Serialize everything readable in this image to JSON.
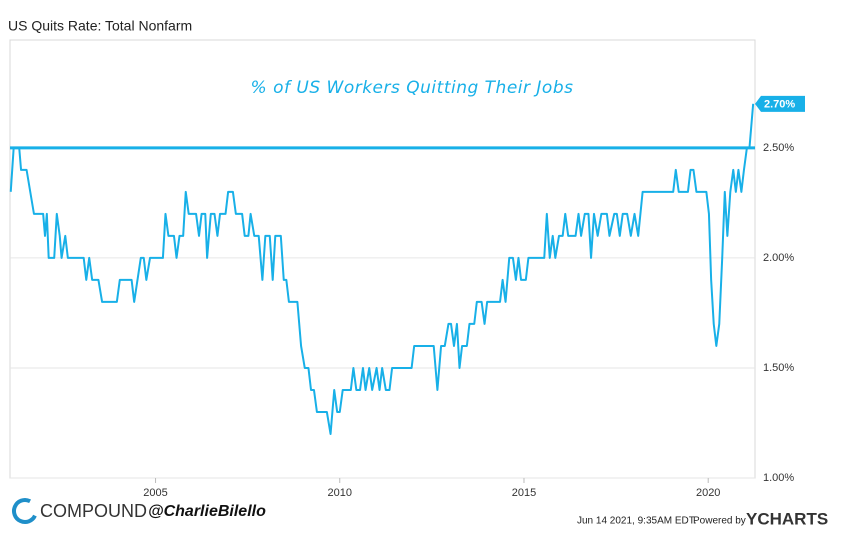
{
  "chart_data": {
    "type": "line",
    "title": "US Quits Rate: Total Nonfarm",
    "annotation": "% of US Workers Quitting Their Jobs",
    "x": [
      2001.07,
      2001.15,
      2001.3,
      2001.35,
      2001.5,
      2001.6,
      2001.7,
      2001.95,
      2002.0,
      2002.05,
      2002.1,
      2002.25,
      2002.32,
      2002.4,
      2002.45,
      2002.55,
      2002.62,
      2003.05,
      2003.12,
      2003.2,
      2003.28,
      2003.45,
      2003.55,
      2003.95,
      2004.03,
      2004.35,
      2004.42,
      2004.6,
      2004.68,
      2004.75,
      2004.85,
      2005.2,
      2005.27,
      2005.35,
      2005.5,
      2005.57,
      2005.65,
      2005.75,
      2005.82,
      2005.9,
      2006.1,
      2006.18,
      2006.25,
      2006.35,
      2006.4,
      2006.5,
      2006.6,
      2006.68,
      2006.75,
      2006.9,
      2006.97,
      2007.1,
      2007.18,
      2007.35,
      2007.42,
      2007.52,
      2007.58,
      2007.68,
      2007.8,
      2007.9,
      2007.98,
      2008.1,
      2008.18,
      2008.25,
      2008.4,
      2008.48,
      2008.55,
      2008.62,
      2008.85,
      2008.95,
      2009.05,
      2009.15,
      2009.22,
      2009.3,
      2009.38,
      2009.65,
      2009.75,
      2009.85,
      2009.93,
      2010.0,
      2010.08,
      2010.3,
      2010.37,
      2010.45,
      2010.55,
      2010.63,
      2010.7,
      2010.8,
      2010.88,
      2011.0,
      2011.08,
      2011.15,
      2011.25,
      2011.35,
      2011.42,
      2011.95,
      2012.02,
      2012.55,
      2012.65,
      2012.75,
      2012.85,
      2012.95,
      2013.02,
      2013.1,
      2013.18,
      2013.25,
      2013.32,
      2013.45,
      2013.52,
      2013.65,
      2013.72,
      2013.85,
      2013.93,
      2014.0,
      2014.35,
      2014.42,
      2014.5,
      2014.6,
      2014.7,
      2014.78,
      2014.85,
      2014.92,
      2015.05,
      2015.12,
      2015.55,
      2015.62,
      2015.7,
      2015.78,
      2015.85,
      2015.95,
      2016.05,
      2016.12,
      2016.2,
      2016.4,
      2016.48,
      2016.55,
      2016.65,
      2016.75,
      2016.82,
      2016.9,
      2017.0,
      2017.1,
      2017.25,
      2017.32,
      2017.45,
      2017.52,
      2017.6,
      2017.68,
      2017.8,
      2017.9,
      2018.0,
      2018.1,
      2018.22,
      2019.05,
      2019.12,
      2019.2,
      2019.45,
      2019.52,
      2019.6,
      2019.68,
      2019.95,
      2020.02,
      2020.08,
      2020.15,
      2020.22,
      2020.3,
      2020.38,
      2020.45,
      2020.52,
      2020.6,
      2020.68,
      2020.75,
      2020.82,
      2020.9,
      2020.97,
      2021.05,
      2021.12,
      2021.22
    ],
    "series": [
      {
        "name": "US Quits Rate: Total Nonfarm",
        "color": "#18b0e8",
        "values": [
          2.3,
          2.5,
          2.5,
          2.4,
          2.4,
          2.3,
          2.2,
          2.2,
          2.1,
          2.2,
          2.0,
          2.0,
          2.2,
          2.1,
          2.0,
          2.1,
          2.0,
          2.0,
          1.9,
          2.0,
          1.9,
          1.9,
          1.8,
          1.8,
          1.9,
          1.9,
          1.8,
          2.0,
          2.0,
          1.9,
          2.0,
          2.0,
          2.2,
          2.1,
          2.1,
          2.0,
          2.1,
          2.1,
          2.3,
          2.2,
          2.2,
          2.1,
          2.2,
          2.2,
          2.0,
          2.2,
          2.2,
          2.1,
          2.2,
          2.2,
          2.3,
          2.3,
          2.2,
          2.2,
          2.1,
          2.1,
          2.2,
          2.1,
          2.1,
          1.9,
          2.1,
          2.1,
          1.9,
          2.1,
          2.1,
          1.9,
          1.9,
          1.8,
          1.8,
          1.6,
          1.5,
          1.5,
          1.4,
          1.4,
          1.3,
          1.3,
          1.2,
          1.4,
          1.3,
          1.3,
          1.4,
          1.4,
          1.5,
          1.4,
          1.4,
          1.5,
          1.4,
          1.5,
          1.4,
          1.5,
          1.4,
          1.5,
          1.4,
          1.4,
          1.5,
          1.5,
          1.6,
          1.6,
          1.4,
          1.6,
          1.6,
          1.7,
          1.7,
          1.6,
          1.7,
          1.5,
          1.6,
          1.6,
          1.7,
          1.7,
          1.8,
          1.8,
          1.7,
          1.8,
          1.8,
          1.9,
          1.8,
          2.0,
          2.0,
          1.9,
          2.0,
          1.9,
          1.9,
          2.0,
          2.0,
          2.2,
          2.0,
          2.1,
          2.0,
          2.1,
          2.1,
          2.2,
          2.1,
          2.1,
          2.2,
          2.1,
          2.2,
          2.2,
          2.0,
          2.2,
          2.1,
          2.2,
          2.2,
          2.1,
          2.2,
          2.2,
          2.1,
          2.2,
          2.2,
          2.1,
          2.2,
          2.1,
          2.3,
          2.3,
          2.4,
          2.3,
          2.3,
          2.4,
          2.4,
          2.3,
          2.3,
          2.2,
          1.9,
          1.7,
          1.6,
          1.7,
          2.0,
          2.3,
          2.1,
          2.3,
          2.4,
          2.3,
          2.4,
          2.3,
          2.4,
          2.5,
          2.5,
          2.7
        ]
      }
    ],
    "end_label": {
      "value": 2.7,
      "label": "2.70%"
    },
    "reference_line": 2.5,
    "xlim": [
      2001.05,
      2021.27
    ],
    "xticks": [
      2005,
      2010,
      2015,
      2020
    ],
    "ylim": [
      1.0,
      2.99
    ],
    "yticks": [
      {
        "value": 1.0,
        "label": "1.00%"
      },
      {
        "value": 1.5,
        "label": "1.50%"
      },
      {
        "value": 2.0,
        "label": "2.00%"
      },
      {
        "value": 2.5,
        "label": "2.50%"
      }
    ],
    "grid": true
  },
  "footer": {
    "brand": "COMPOUND",
    "handle": "@CharlieBilello",
    "timestamp": "Jun 14 2021, 9:35AM EDT.",
    "powered": "Powered by",
    "provider": "YCHARTS"
  }
}
